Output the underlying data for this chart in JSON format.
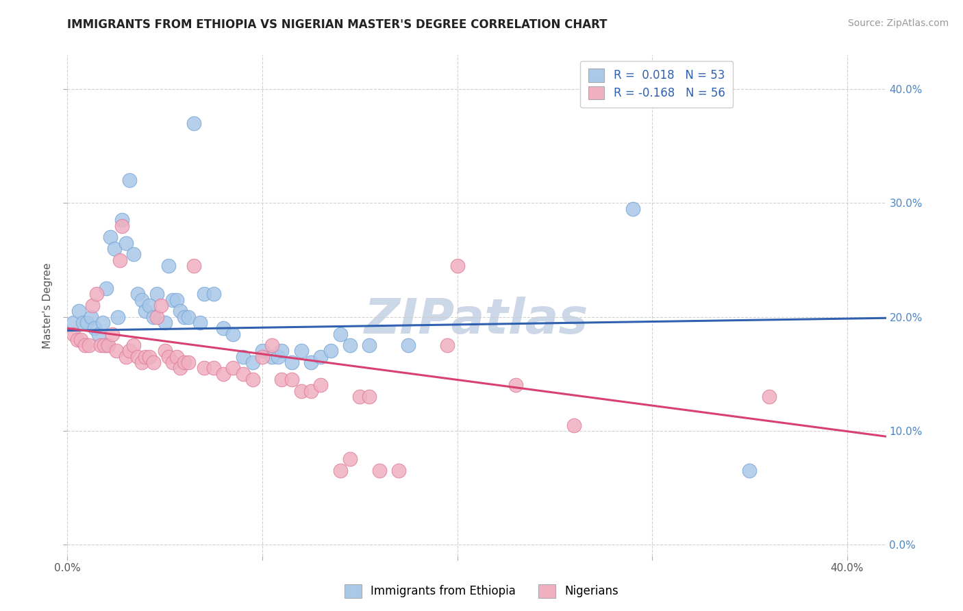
{
  "title": "IMMIGRANTS FROM ETHIOPIA VS NIGERIAN MASTER'S DEGREE CORRELATION CHART",
  "source": "Source: ZipAtlas.com",
  "ylabel": "Master's Degree",
  "watermark": "ZIPatlas",
  "legend_blue_r": "R =  0.018",
  "legend_blue_n": "N = 53",
  "legend_pink_r": "R = -0.168",
  "legend_pink_n": "N = 56",
  "xlim": [
    0.0,
    0.42
  ],
  "ylim": [
    -0.01,
    0.43
  ],
  "yticks": [
    0.0,
    0.1,
    0.2,
    0.3,
    0.4
  ],
  "xticks": [
    0.0,
    0.1,
    0.2,
    0.3,
    0.4
  ],
  "xticklabels": [
    "0.0%",
    "",
    "",
    "",
    "40.0%"
  ],
  "yticklabels": [
    "",
    "",
    "",
    "",
    ""
  ],
  "yticklabels_right": [
    "0.0%",
    "10.0%",
    "20.0%",
    "30.0%",
    "40.0%"
  ],
  "blue_color": "#aac8e8",
  "blue_edge_color": "#7aa8d8",
  "blue_line_color": "#3060b0",
  "pink_color": "#f0b0c0",
  "pink_edge_color": "#e080a0",
  "pink_line_color": "#d84070",
  "blue_scatter": [
    [
      0.003,
      0.195
    ],
    [
      0.006,
      0.205
    ],
    [
      0.008,
      0.195
    ],
    [
      0.01,
      0.195
    ],
    [
      0.012,
      0.2
    ],
    [
      0.014,
      0.19
    ],
    [
      0.016,
      0.185
    ],
    [
      0.018,
      0.195
    ],
    [
      0.02,
      0.225
    ],
    [
      0.02,
      0.175
    ],
    [
      0.022,
      0.27
    ],
    [
      0.024,
      0.26
    ],
    [
      0.026,
      0.2
    ],
    [
      0.028,
      0.285
    ],
    [
      0.03,
      0.265
    ],
    [
      0.032,
      0.32
    ],
    [
      0.034,
      0.255
    ],
    [
      0.036,
      0.22
    ],
    [
      0.038,
      0.215
    ],
    [
      0.04,
      0.205
    ],
    [
      0.042,
      0.21
    ],
    [
      0.044,
      0.2
    ],
    [
      0.046,
      0.22
    ],
    [
      0.05,
      0.195
    ],
    [
      0.052,
      0.245
    ],
    [
      0.054,
      0.215
    ],
    [
      0.056,
      0.215
    ],
    [
      0.058,
      0.205
    ],
    [
      0.06,
      0.2
    ],
    [
      0.062,
      0.2
    ],
    [
      0.065,
      0.37
    ],
    [
      0.068,
      0.195
    ],
    [
      0.07,
      0.22
    ],
    [
      0.075,
      0.22
    ],
    [
      0.08,
      0.19
    ],
    [
      0.085,
      0.185
    ],
    [
      0.09,
      0.165
    ],
    [
      0.095,
      0.16
    ],
    [
      0.1,
      0.17
    ],
    [
      0.105,
      0.165
    ],
    [
      0.108,
      0.165
    ],
    [
      0.11,
      0.17
    ],
    [
      0.115,
      0.16
    ],
    [
      0.12,
      0.17
    ],
    [
      0.125,
      0.16
    ],
    [
      0.13,
      0.165
    ],
    [
      0.135,
      0.17
    ],
    [
      0.14,
      0.185
    ],
    [
      0.145,
      0.175
    ],
    [
      0.155,
      0.175
    ],
    [
      0.175,
      0.175
    ],
    [
      0.29,
      0.295
    ],
    [
      0.35,
      0.065
    ]
  ],
  "pink_scatter": [
    [
      0.003,
      0.185
    ],
    [
      0.005,
      0.18
    ],
    [
      0.007,
      0.18
    ],
    [
      0.009,
      0.175
    ],
    [
      0.011,
      0.175
    ],
    [
      0.013,
      0.21
    ],
    [
      0.015,
      0.22
    ],
    [
      0.017,
      0.175
    ],
    [
      0.019,
      0.175
    ],
    [
      0.021,
      0.175
    ],
    [
      0.023,
      0.185
    ],
    [
      0.025,
      0.17
    ],
    [
      0.027,
      0.25
    ],
    [
      0.028,
      0.28
    ],
    [
      0.03,
      0.165
    ],
    [
      0.032,
      0.17
    ],
    [
      0.034,
      0.175
    ],
    [
      0.036,
      0.165
    ],
    [
      0.038,
      0.16
    ],
    [
      0.04,
      0.165
    ],
    [
      0.042,
      0.165
    ],
    [
      0.044,
      0.16
    ],
    [
      0.046,
      0.2
    ],
    [
      0.048,
      0.21
    ],
    [
      0.05,
      0.17
    ],
    [
      0.052,
      0.165
    ],
    [
      0.054,
      0.16
    ],
    [
      0.056,
      0.165
    ],
    [
      0.058,
      0.155
    ],
    [
      0.06,
      0.16
    ],
    [
      0.062,
      0.16
    ],
    [
      0.065,
      0.245
    ],
    [
      0.07,
      0.155
    ],
    [
      0.075,
      0.155
    ],
    [
      0.08,
      0.15
    ],
    [
      0.085,
      0.155
    ],
    [
      0.09,
      0.15
    ],
    [
      0.095,
      0.145
    ],
    [
      0.1,
      0.165
    ],
    [
      0.105,
      0.175
    ],
    [
      0.11,
      0.145
    ],
    [
      0.115,
      0.145
    ],
    [
      0.12,
      0.135
    ],
    [
      0.125,
      0.135
    ],
    [
      0.13,
      0.14
    ],
    [
      0.14,
      0.065
    ],
    [
      0.145,
      0.075
    ],
    [
      0.15,
      0.13
    ],
    [
      0.155,
      0.13
    ],
    [
      0.16,
      0.065
    ],
    [
      0.17,
      0.065
    ],
    [
      0.195,
      0.175
    ],
    [
      0.2,
      0.245
    ],
    [
      0.23,
      0.14
    ],
    [
      0.26,
      0.105
    ],
    [
      0.36,
      0.13
    ]
  ],
  "blue_line_x": [
    0.0,
    0.42
  ],
  "blue_line_y": [
    0.188,
    0.199
  ],
  "pink_line_x": [
    0.0,
    0.42
  ],
  "pink_line_y": [
    0.19,
    0.095
  ],
  "bg_color": "#ffffff",
  "grid_color": "#cccccc",
  "title_fontsize": 12,
  "axis_label_fontsize": 11,
  "tick_fontsize": 11,
  "source_fontsize": 10,
  "watermark_fontsize": 52,
  "watermark_color": "#ccd8e8",
  "legend_label_blue": "Immigrants from Ethiopia",
  "legend_label_pink": "Nigerians"
}
